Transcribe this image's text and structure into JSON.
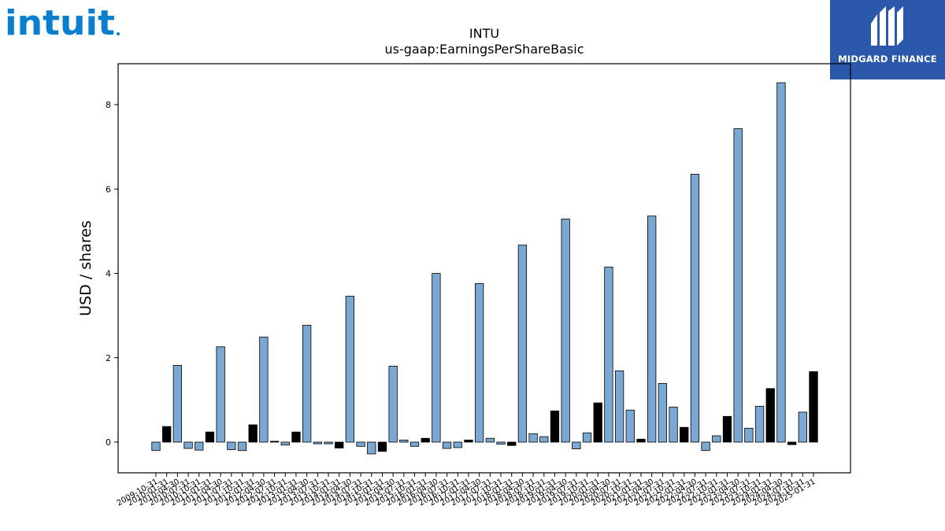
{
  "branding": {
    "left_logo_text": "INTUIT",
    "right_logo_text": "MIDGARD FINANCE",
    "right_logo_bg": "#2b58aa",
    "left_logo_color": "#0a7fd0"
  },
  "chart_data": {
    "type": "bar",
    "title": "INTU",
    "subtitle": "us-gaap:EarningsPerShareBasic",
    "xlabel": "",
    "ylabel": "USD / shares",
    "ylim": [
      -0.75,
      9.0
    ],
    "yticks": [
      0,
      2,
      4,
      6,
      8
    ],
    "grid": false,
    "colors": {
      "quarterly": "#7aa8d2",
      "annual_or_alt": "#000000"
    },
    "categories": [
      "2009-10-31",
      "2010-01-31",
      "2010-04-30",
      "2010-07-31",
      "2010-10-31",
      "2011-01-31",
      "2011-04-30",
      "2011-07-31",
      "2011-10-31",
      "2012-01-31",
      "2012-04-30",
      "2012-07-31",
      "2012-10-31",
      "2013-01-31",
      "2013-04-30",
      "2013-07-31",
      "2013-10-31",
      "2014-01-31",
      "2014-04-30",
      "2014-07-31",
      "2014-10-31",
      "2015-01-31",
      "2015-04-30",
      "2015-07-31",
      "2015-10-31",
      "2016-01-31",
      "2016-04-30",
      "2016-07-31",
      "2016-10-31",
      "2017-01-31",
      "2017-04-30",
      "2017-07-31",
      "2017-10-31",
      "2018-01-31",
      "2018-04-30",
      "2018-07-31",
      "2018-10-31",
      "2019-01-31",
      "2019-04-30",
      "2019-07-31",
      "2019-10-31",
      "2020-01-31",
      "2020-04-30",
      "2020-07-31",
      "2020-10-31",
      "2021-01-31",
      "2021-04-30",
      "2021-07-31",
      "2021-10-31",
      "2022-01-31",
      "2022-04-30",
      "2022-07-31",
      "2022-10-31",
      "2023-01-31",
      "2023-04-30",
      "2023-07-31",
      "2023-10-31",
      "2024-01-31",
      "2024-04-30",
      "2024-07-31",
      "2024-10-31",
      "2025-01-31"
    ],
    "values": [
      -0.2,
      0.37,
      1.82,
      -0.15,
      -0.19,
      0.24,
      2.26,
      -0.18,
      -0.2,
      0.41,
      2.49,
      0.02,
      -0.07,
      0.24,
      2.77,
      -0.04,
      -0.04,
      -0.14,
      3.46,
      -0.1,
      -0.28,
      -0.22,
      1.8,
      0.05,
      -0.1,
      0.09,
      4.0,
      -0.15,
      -0.13,
      0.05,
      3.76,
      0.09,
      -0.05,
      -0.08,
      4.67,
      0.2,
      0.13,
      0.74,
      5.29,
      -0.16,
      0.22,
      0.93,
      4.15,
      1.69,
      0.76,
      0.07,
      5.36,
      1.39,
      0.83,
      0.35,
      6.35,
      -0.2,
      0.15,
      0.61,
      7.43,
      0.33,
      0.85,
      1.27,
      8.52,
      -0.06,
      0.71,
      1.67
    ],
    "series_type": [
      "q",
      "a",
      "q",
      "q",
      "q",
      "a",
      "q",
      "q",
      "q",
      "a",
      "q",
      "a",
      "q",
      "a",
      "q",
      "q",
      "q",
      "a",
      "q",
      "q",
      "q",
      "a",
      "q",
      "q",
      "q",
      "a",
      "q",
      "q",
      "q",
      "a",
      "q",
      "q",
      "q",
      "a",
      "q",
      "q",
      "q",
      "a",
      "q",
      "q",
      "q",
      "a",
      "q",
      "q",
      "q",
      "a",
      "q",
      "q",
      "q",
      "a",
      "q",
      "q",
      "q",
      "a",
      "q",
      "q",
      "q",
      "a",
      "q",
      "a",
      "q",
      "a"
    ]
  }
}
